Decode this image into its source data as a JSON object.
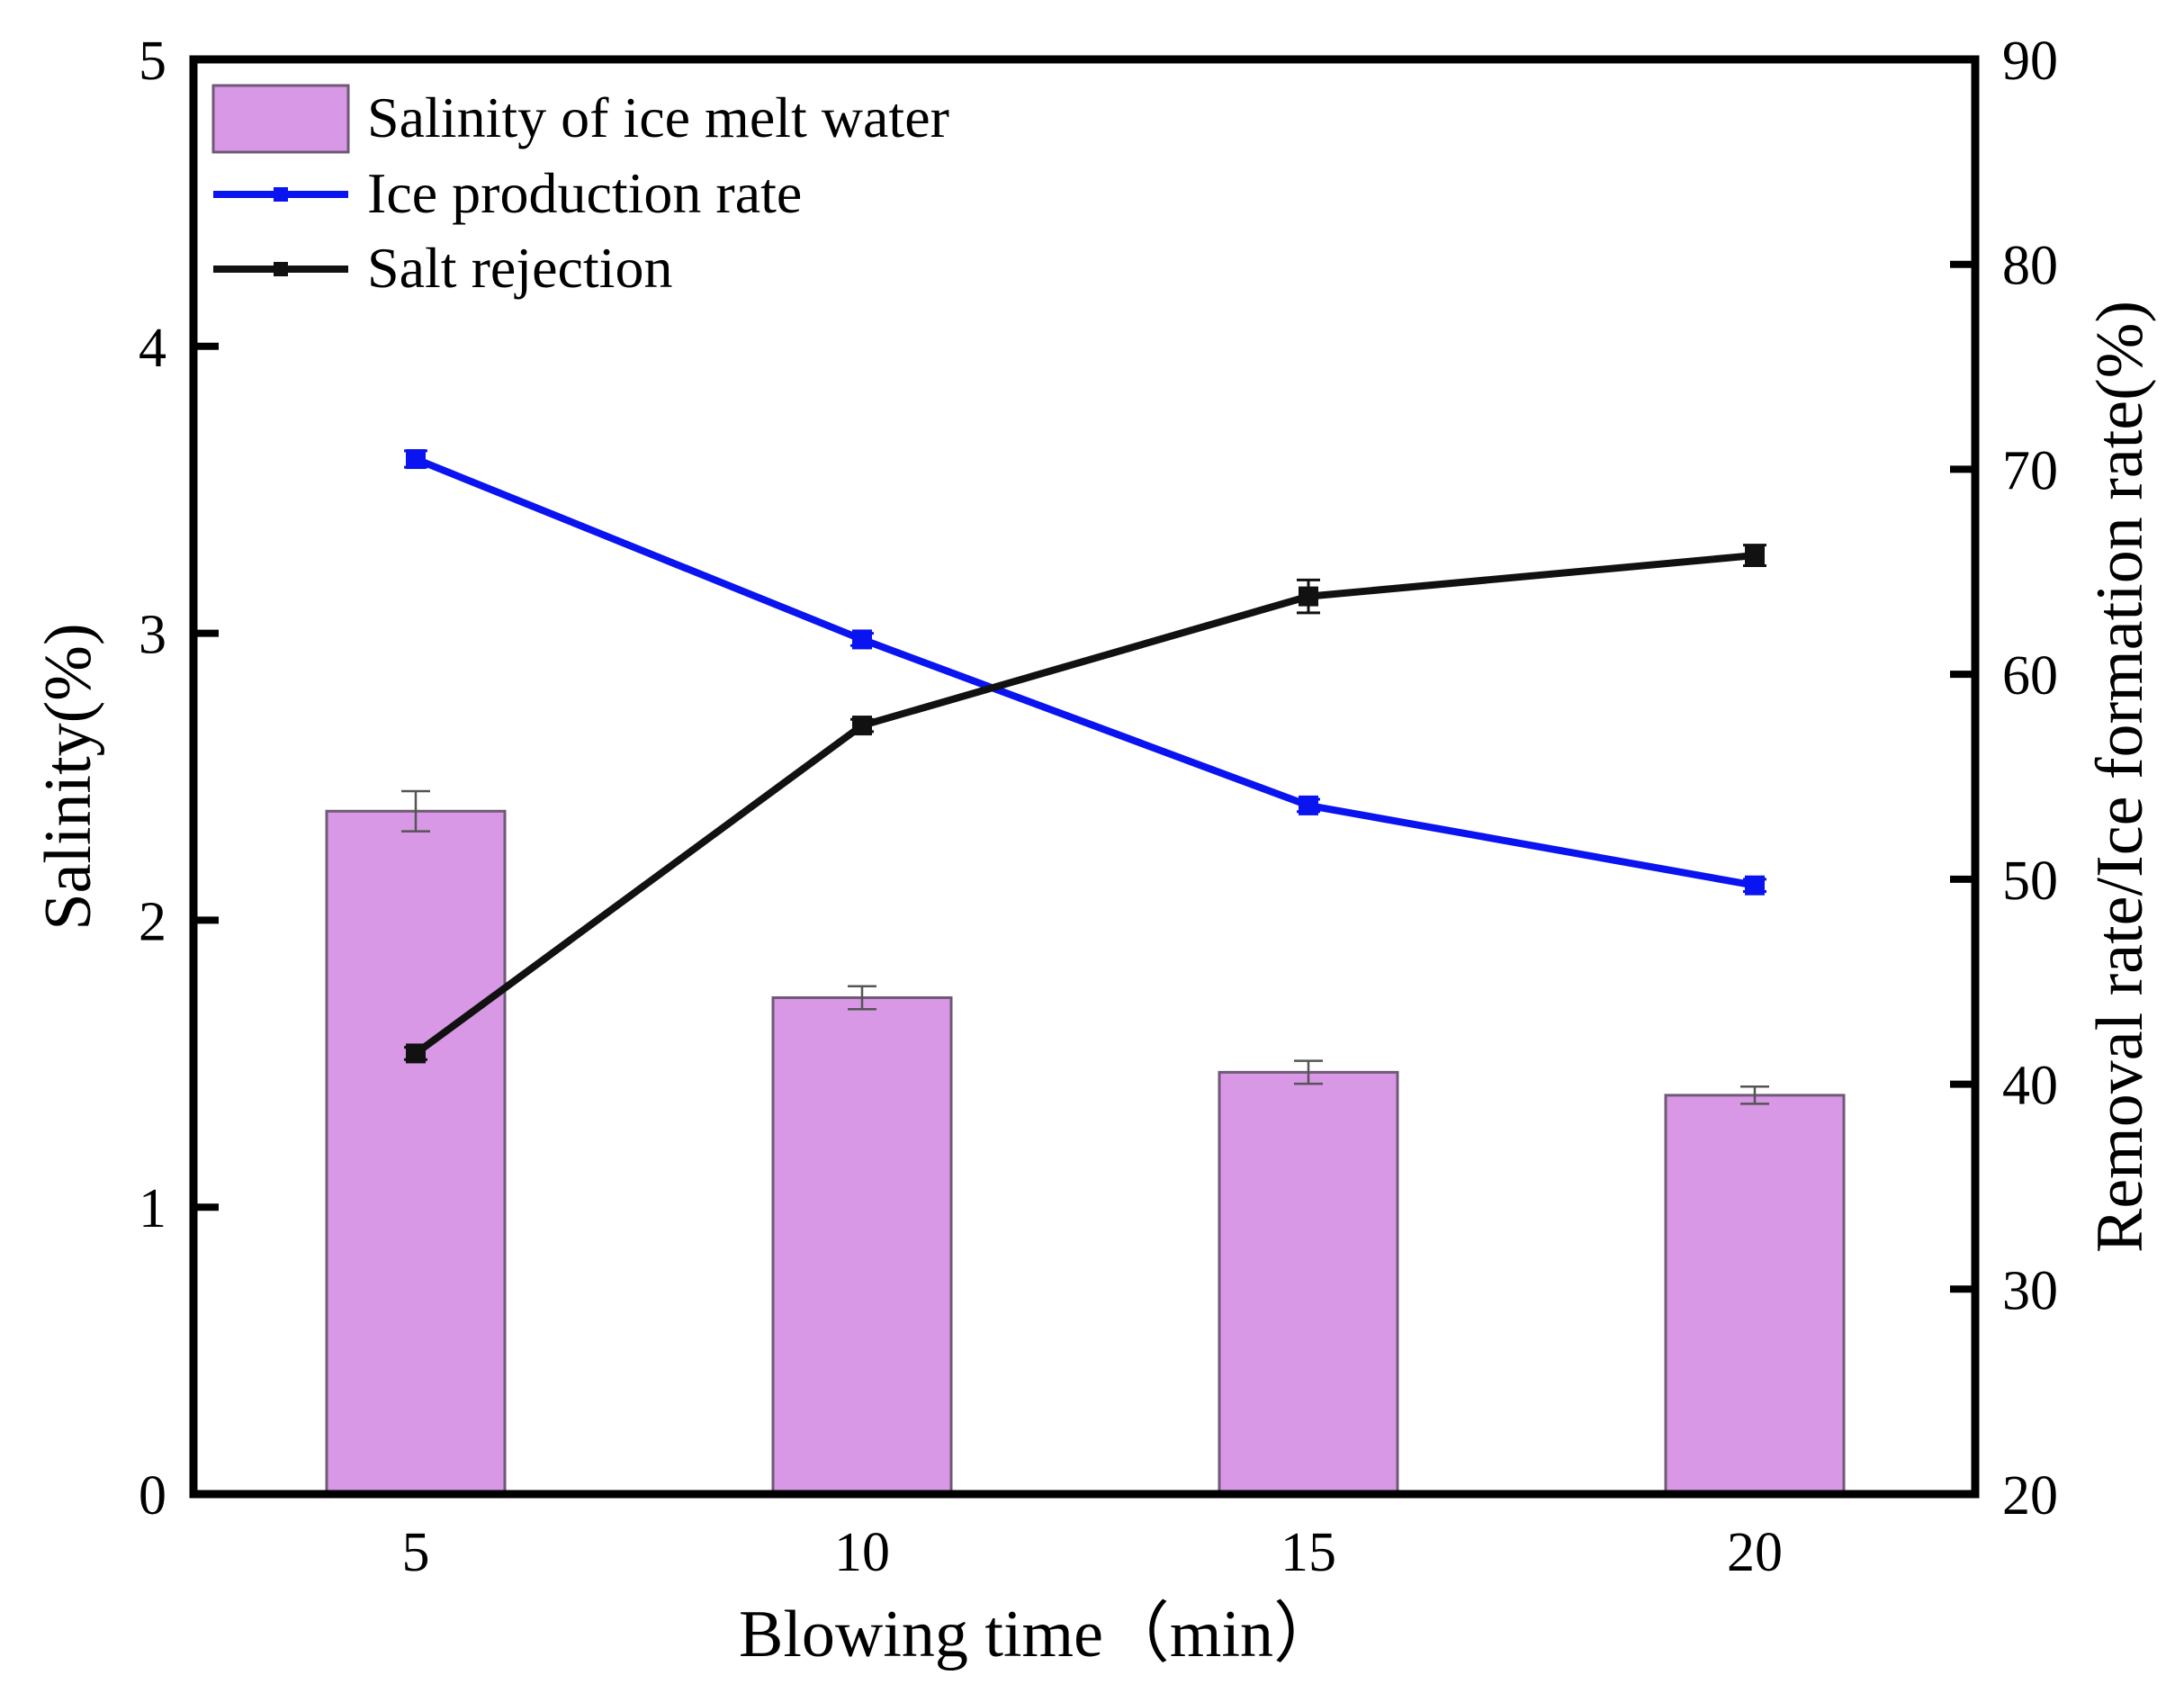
{
  "chart_data": {
    "type": "bar+line",
    "title": "",
    "xlabel": "Blowing time（min）",
    "ylabel_left": "Salinity(%)",
    "ylabel_right": "Removal rate/Ice formation rate(%)",
    "categories": [
      "5",
      "10",
      "15",
      "20"
    ],
    "x": [
      5,
      10,
      15,
      20
    ],
    "ylim_left": [
      0,
      5
    ],
    "ylim_right": [
      20,
      90
    ],
    "yticks_left": [
      "0",
      "1",
      "2",
      "3",
      "4",
      "5"
    ],
    "yticks_right": [
      "20",
      "30",
      "40",
      "50",
      "60",
      "70",
      "80",
      "90"
    ],
    "legend_position": "top-left",
    "series": [
      {
        "name": "Salinity of ice melt water",
        "kind": "bar",
        "axis": "left",
        "values": [
          2.38,
          1.73,
          1.47,
          1.39
        ],
        "errors": [
          0.07,
          0.04,
          0.04,
          0.03
        ],
        "color": "#d898e6",
        "edge_color": "#6f5a75"
      },
      {
        "name": "Ice production rate",
        "kind": "line",
        "axis": "right",
        "values": [
          70.5,
          61.7,
          53.6,
          49.7
        ],
        "errors": [
          0.4,
          0.3,
          0.3,
          0.3
        ],
        "color": "#0a14f0"
      },
      {
        "name": "Salt rejection",
        "kind": "line",
        "axis": "right",
        "values": [
          41.5,
          57.5,
          63.8,
          65.8
        ],
        "errors": [
          0.3,
          0.3,
          0.8,
          0.5
        ],
        "color": "#111111"
      }
    ]
  }
}
